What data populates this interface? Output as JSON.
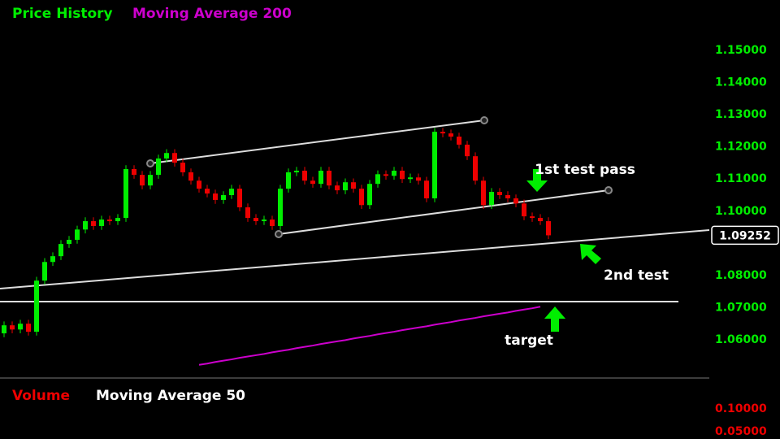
{
  "chart_data": [
    {
      "type": "candlestick",
      "series": [
        {
          "name": "Price History",
          "color": "#00ee00",
          "down_color": "#ee0000",
          "open": [
            1.062,
            1.0645,
            1.0632,
            1.065,
            1.0625,
            1.0784,
            1.0842,
            1.086,
            1.0898,
            1.0911,
            1.0943,
            1.0969,
            1.0954,
            1.0974,
            1.0969,
            1.0979,
            1.1131,
            1.1113,
            1.108,
            1.1113,
            1.1164,
            1.1181,
            1.1151,
            1.1121,
            1.1095,
            1.107,
            1.1055,
            1.1035,
            1.105,
            1.107,
            1.1012,
            1.0979,
            1.0969,
            1.0974,
            1.0954,
            1.107,
            1.1121,
            1.1126,
            1.1095,
            1.1085,
            1.1126,
            1.108,
            1.1065,
            1.109,
            1.107,
            1.1019,
            1.1085,
            1.1115,
            1.111,
            1.1126,
            1.11,
            1.1105,
            1.1095,
            1.104,
            1.1247,
            1.1242,
            1.1232,
            1.1207,
            1.1171,
            1.1095,
            1.1019,
            1.106,
            1.105,
            1.104,
            1.1024,
            1.0984,
            1.0979,
            1.0969
          ],
          "high": [
            1.0657,
            1.0657,
            1.0662,
            1.0662,
            1.0796,
            1.0854,
            1.0872,
            1.091,
            1.0923,
            1.0955,
            1.0981,
            1.0981,
            1.0986,
            1.0986,
            1.0991,
            1.1143,
            1.1143,
            1.1125,
            1.1125,
            1.1176,
            1.1193,
            1.1193,
            1.1163,
            1.1133,
            1.1107,
            1.1082,
            1.1067,
            1.1062,
            1.1082,
            1.1082,
            1.1024,
            1.0991,
            1.0986,
            1.0986,
            1.1082,
            1.1133,
            1.1138,
            1.1138,
            1.1107,
            1.1138,
            1.1138,
            1.1092,
            1.1102,
            1.1102,
            1.1082,
            1.1097,
            1.1127,
            1.1127,
            1.1138,
            1.1138,
            1.1117,
            1.1117,
            1.1107,
            1.1259,
            1.1259,
            1.1254,
            1.1244,
            1.1219,
            1.1183,
            1.1107,
            1.1072,
            1.1072,
            1.1062,
            1.1052,
            1.1036,
            1.0996,
            1.0991,
            1.0981
          ],
          "low": [
            1.0608,
            1.062,
            1.062,
            1.0613,
            1.0613,
            1.0772,
            1.083,
            1.0848,
            1.0886,
            1.0899,
            1.0931,
            1.0942,
            1.0942,
            1.0957,
            1.0957,
            1.0967,
            1.1101,
            1.1068,
            1.1068,
            1.1101,
            1.1152,
            1.1139,
            1.1109,
            1.1083,
            1.1058,
            1.1043,
            1.1023,
            1.1023,
            1.1038,
            1.1,
            1.0967,
            1.0957,
            1.0957,
            1.0942,
            1.0942,
            1.1058,
            1.1109,
            1.1083,
            1.1073,
            1.1073,
            1.1068,
            1.1053,
            1.1053,
            1.1058,
            1.1007,
            1.1007,
            1.1073,
            1.1098,
            1.1098,
            1.1088,
            1.1088,
            1.1083,
            1.1028,
            1.1028,
            1.123,
            1.122,
            1.1195,
            1.1159,
            1.1083,
            1.1007,
            1.1007,
            1.1038,
            1.1028,
            1.1012,
            1.0972,
            1.0967,
            1.0957,
            1.0913
          ],
          "close": [
            1.0645,
            1.0632,
            1.065,
            1.0625,
            1.0784,
            1.0842,
            1.086,
            1.0898,
            1.0911,
            1.0943,
            1.0969,
            1.0954,
            1.0974,
            1.0969,
            1.0979,
            1.1131,
            1.1113,
            1.108,
            1.1113,
            1.1164,
            1.1181,
            1.1151,
            1.1121,
            1.1095,
            1.107,
            1.1055,
            1.1035,
            1.105,
            1.107,
            1.1012,
            1.0979,
            1.0969,
            1.0974,
            1.0954,
            1.107,
            1.1121,
            1.1126,
            1.1095,
            1.1085,
            1.1126,
            1.108,
            1.1065,
            1.109,
            1.107,
            1.1019,
            1.1085,
            1.1115,
            1.111,
            1.1126,
            1.11,
            1.1105,
            1.1095,
            1.104,
            1.1247,
            1.1242,
            1.1232,
            1.1207,
            1.1171,
            1.1095,
            1.1019,
            1.106,
            1.105,
            1.104,
            1.1024,
            1.0984,
            1.0979,
            1.0969,
            1.0925
          ]
        },
        {
          "name": "Moving Average 200",
          "color": "#cc00cc",
          "values": [
            null,
            null,
            null,
            null,
            null,
            null,
            null,
            null,
            null,
            null,
            null,
            null,
            null,
            null,
            null,
            null,
            null,
            null,
            null,
            null,
            null,
            null,
            null,
            null,
            1.0522,
            1.0526,
            1.0531,
            1.0535,
            1.0539,
            1.0544,
            1.0548,
            1.0552,
            1.0556,
            1.0561,
            1.0565,
            1.0569,
            1.0574,
            1.0578,
            1.0582,
            1.0587,
            1.0591,
            1.0595,
            1.0599,
            1.0604,
            1.0608,
            1.0612,
            1.0617,
            1.0621,
            1.0625,
            1.063,
            1.0634,
            1.0638,
            1.0642,
            1.0647,
            1.0651,
            1.0655,
            1.066,
            1.0664,
            1.0668,
            1.0673,
            1.0677,
            1.0681,
            1.0685,
            1.069,
            1.0694,
            1.0698,
            1.0703,
            null
          ]
        }
      ],
      "ylim": [
        1.0481,
        1.1657
      ],
      "yticks": [
        {
          "value": 1.15,
          "label": "1.15000"
        },
        {
          "value": 1.14,
          "label": "1.14000"
        },
        {
          "value": 1.13,
          "label": "1.13000"
        },
        {
          "value": 1.12,
          "label": "1.12000"
        },
        {
          "value": 1.11,
          "label": "1.11000"
        },
        {
          "value": 1.1,
          "label": "1.10000"
        },
        {
          "value": 1.08,
          "label": "1.08000"
        },
        {
          "value": 1.07,
          "label": "1.07000"
        },
        {
          "value": 1.06,
          "label": "1.06000"
        }
      ],
      "last_price": 1.09252,
      "annotations": [
        "1st test pass",
        "2nd test",
        "target"
      ]
    },
    {
      "type": "volume",
      "series": [
        {
          "name": "Volume",
          "color": "#ee0000"
        },
        {
          "name": "Moving Average 50",
          "color": "#ffffff"
        }
      ],
      "ylim": [
        0.0339,
        0.1589
      ],
      "yticks": [
        {
          "value": 0.1,
          "label": "0.10000"
        },
        {
          "value": 0.05,
          "label": "0.05000"
        }
      ]
    }
  ]
}
